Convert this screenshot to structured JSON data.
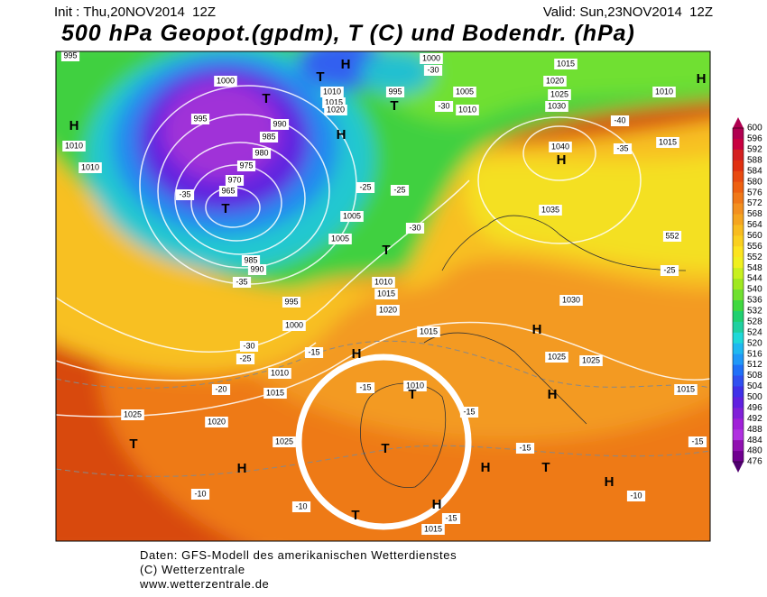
{
  "header": {
    "init": "Init : Thu,20NOV2014  12Z",
    "valid": "Valid: Sun,23NOV2014  12Z",
    "title": "500 hPa Geopot.(gpdm), T (C) und Bodendr. (hPa)"
  },
  "footer": {
    "line1": "Daten: GFS-Modell des amerikanischen Wetterdienstes",
    "line2": "(C) Wetterzentrale",
    "line3": "www.wetterzentrale.de"
  },
  "colorbar": {
    "labels": [
      600,
      596,
      592,
      588,
      584,
      580,
      576,
      572,
      568,
      564,
      560,
      556,
      552,
      548,
      544,
      540,
      536,
      532,
      528,
      524,
      520,
      516,
      512,
      508,
      504,
      500,
      496,
      492,
      488,
      484,
      480,
      476
    ],
    "colors": [
      "#b00050",
      "#c80040",
      "#d42020",
      "#e03010",
      "#e84a10",
      "#ee6010",
      "#f07818",
      "#f39020",
      "#f5a520",
      "#f8bc20",
      "#fad020",
      "#fce420",
      "#f0f020",
      "#c8f020",
      "#a0e820",
      "#70e030",
      "#40d840",
      "#20d070",
      "#20d0a0",
      "#20d8d8",
      "#20b8f0",
      "#2098f8",
      "#2070f8",
      "#3050f0",
      "#4030e8",
      "#6020e0",
      "#8020d8",
      "#a020d8",
      "#b030e0",
      "#9010b0",
      "#700090",
      "#500070"
    ]
  },
  "map_labels": [
    "995",
    "1000",
    "995",
    "990",
    "985",
    "980",
    "975",
    "970",
    "965",
    "985",
    "990",
    "1010",
    "1010",
    "H",
    "H",
    "T",
    "T",
    "1010",
    "1015",
    "1020",
    "H",
    "995",
    "T",
    "1000",
    "-30",
    "1005",
    "1010",
    "-30",
    "1015",
    "1020",
    "1025",
    "1030",
    "1010",
    "1015",
    "H",
    "H",
    "1040",
    "-35",
    "-40",
    "1035",
    "552",
    "-25",
    "1030",
    "H",
    "1025",
    "1025",
    "H",
    "1015",
    "-15",
    "H",
    "-10",
    "T",
    "-15",
    "H",
    "-15",
    "1010",
    "T",
    "T",
    "H",
    "-15",
    "1015",
    "T",
    "-10",
    "-10",
    "H",
    "1025",
    "1020",
    "T",
    "1025",
    "-20",
    "1015",
    "1010",
    "-25",
    "-30",
    "-15",
    "H",
    "-15",
    "1000",
    "995",
    "1010",
    "1015",
    "1020",
    "T",
    "1005",
    "1005",
    "-30",
    "-25",
    "-25",
    "T",
    "-35",
    "-35",
    "1015"
  ]
}
